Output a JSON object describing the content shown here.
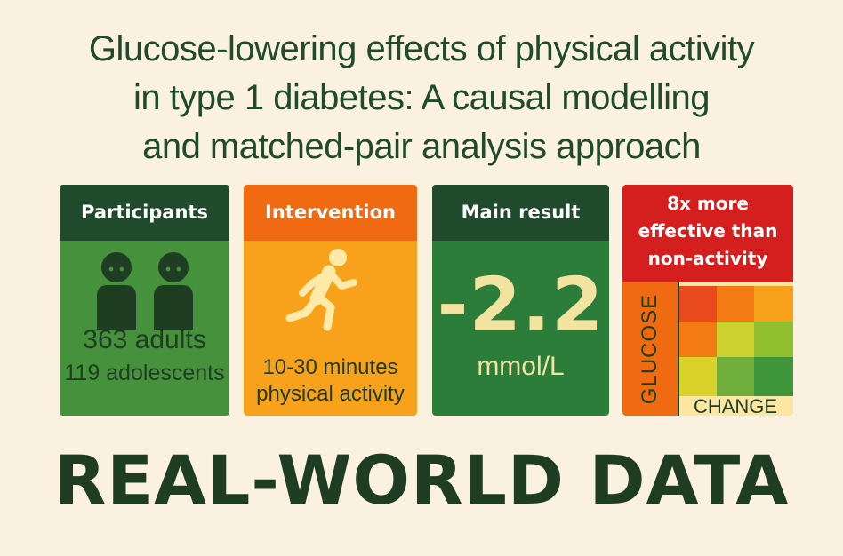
{
  "title": {
    "line1": "Glucose-lowering effects of physical activity",
    "line2": "in type 1 diabetes: A causal modelling",
    "line3": "and matched-pair analysis approach"
  },
  "panels": {
    "participants": {
      "heading": "Participants",
      "adults": "363 adults",
      "adolescents": "119 adolescents",
      "icon": "people-icon"
    },
    "intervention": {
      "heading": "Intervention",
      "line1": "10-30 minutes",
      "line2": "physical activity",
      "icon": "runner-icon"
    },
    "main_result": {
      "heading": "Main result",
      "value": "-2.2",
      "unit": "mmol/L"
    },
    "effectiveness": {
      "line1": "8x more",
      "line2": "effective than",
      "line3": "non-activity",
      "y_label": "GLUCOSE",
      "x_label": "CHANGE"
    }
  },
  "footer": "REAL-WORLD DATA",
  "colors": {
    "background": "#fbf1e1",
    "dark_green": "#1f4a2b",
    "green": "#45913c",
    "orange": "#f06a12",
    "amber": "#f8a21c",
    "red": "#d51f1f",
    "cream_text": "#f2e3a0"
  }
}
